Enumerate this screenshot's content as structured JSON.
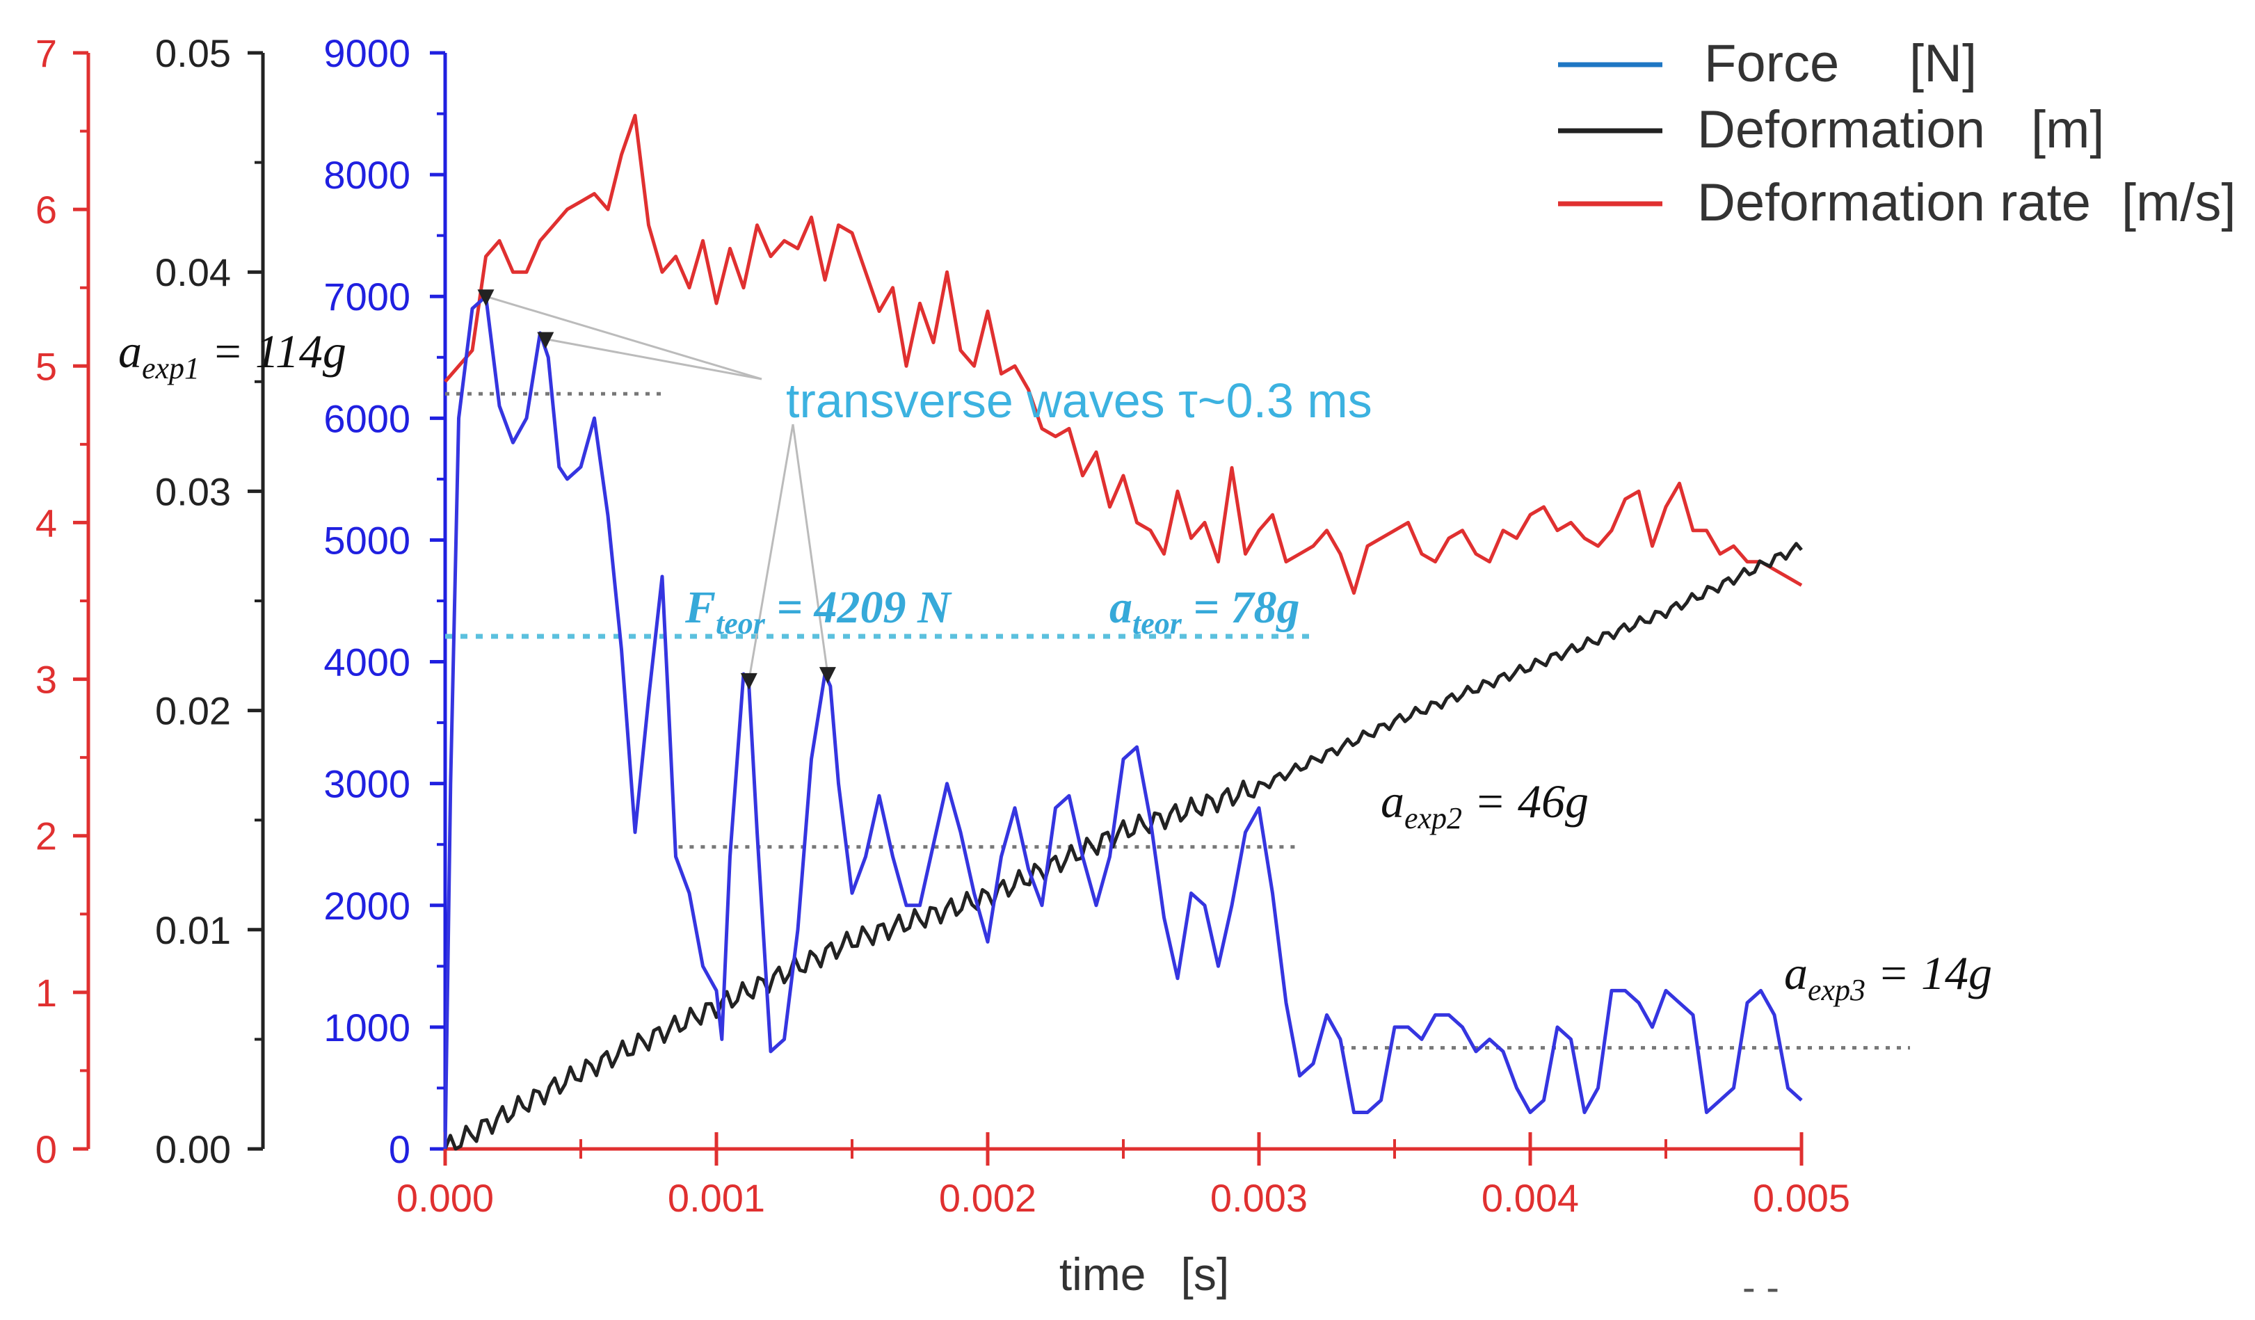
{
  "chart_data": {
    "type": "line",
    "xlabel": "time",
    "xunit": "[s]",
    "x_range": [
      0,
      0.005
    ],
    "x_ticks": [
      "0.000",
      "0.001",
      "0.002",
      "0.003",
      "0.004",
      "0.005"
    ],
    "axes": {
      "rate": {
        "color": "#e03030",
        "range": [
          0,
          7
        ],
        "ticks": [
          "0",
          "1",
          "2",
          "3",
          "4",
          "5",
          "6",
          "7"
        ]
      },
      "deformation": {
        "color": "#222222",
        "range": [
          0,
          0.05
        ],
        "ticks": [
          "0.00",
          "0.01",
          "0.02",
          "0.03",
          "0.04",
          "0.05"
        ]
      },
      "force": {
        "color": "#2020e0",
        "range": [
          0,
          9000
        ],
        "ticks": [
          "0",
          "1000",
          "2000",
          "3000",
          "4000",
          "5000",
          "6000",
          "7000",
          "8000",
          "9000"
        ]
      }
    },
    "legend": [
      {
        "label": "Force",
        "unit": "[N]",
        "color": "#1f77c4"
      },
      {
        "label": "Deformation",
        "unit": "[m]",
        "color": "#222222"
      },
      {
        "label": "Deformation rate",
        "unit": "[m/s]",
        "color": "#e03030"
      }
    ],
    "series": [
      {
        "name": "Force",
        "axis": "force",
        "color": "#3535e0",
        "x": [
          0,
          2e-05,
          5e-05,
          0.0001,
          0.00015,
          0.0002,
          0.00025,
          0.0003,
          0.00035,
          0.00038,
          0.00042,
          0.00045,
          0.0005,
          0.00055,
          0.0006,
          0.00065,
          0.0007,
          0.00075,
          0.0008,
          0.00082,
          0.00085,
          0.0009,
          0.00095,
          0.001,
          0.00102,
          0.00105,
          0.0011,
          0.00112,
          0.00115,
          0.0012,
          0.00125,
          0.0013,
          0.00135,
          0.0014,
          0.00142,
          0.00145,
          0.0015,
          0.00155,
          0.0016,
          0.00165,
          0.0017,
          0.00175,
          0.0018,
          0.00185,
          0.0019,
          0.00195,
          0.002,
          0.00205,
          0.0021,
          0.00215,
          0.0022,
          0.00225,
          0.0023,
          0.00235,
          0.0024,
          0.00245,
          0.0025,
          0.00255,
          0.0026,
          0.00265,
          0.0027,
          0.00275,
          0.0028,
          0.00285,
          0.0029,
          0.00295,
          0.003,
          0.00305,
          0.0031,
          0.00315,
          0.0032,
          0.00325,
          0.0033,
          0.00335,
          0.0034,
          0.00345,
          0.0035,
          0.00355,
          0.0036,
          0.00365,
          0.0037,
          0.00375,
          0.0038,
          0.00385,
          0.0039,
          0.00395,
          0.004,
          0.00405,
          0.0041,
          0.00415,
          0.0042,
          0.00425,
          0.0043,
          0.00435,
          0.0044,
          0.00445,
          0.0045,
          0.00455,
          0.0046,
          0.00465,
          0.0047,
          0.00475,
          0.0048,
          0.00485,
          0.0049,
          0.00495,
          0.005
        ],
        "y": [
          0,
          3000,
          6000,
          6900,
          7000,
          6100,
          5800,
          6000,
          6700,
          6500,
          5600,
          5500,
          5600,
          6000,
          5200,
          4100,
          2600,
          3700,
          4700,
          3800,
          2400,
          2100,
          1500,
          1300,
          900,
          2400,
          3900,
          3800,
          2600,
          800,
          900,
          1800,
          3200,
          3900,
          3800,
          3000,
          2100,
          2400,
          2900,
          2400,
          2000,
          2000,
          2500,
          3000,
          2600,
          2100,
          1700,
          2400,
          2800,
          2300,
          2000,
          2800,
          2900,
          2400,
          2000,
          2400,
          3200,
          3300,
          2700,
          1900,
          1400,
          2100,
          2000,
          1500,
          2000,
          2600,
          2800,
          2100,
          1200,
          600,
          700,
          1100,
          900,
          300,
          300,
          400,
          1000,
          1000,
          900,
          1100,
          1100,
          1000,
          800,
          900,
          800,
          500,
          300,
          400,
          1000,
          900,
          300,
          500,
          1300,
          1300,
          1200,
          1000,
          1300,
          1200,
          1100,
          300,
          400,
          500,
          1200,
          1300,
          1100,
          500,
          400
        ]
      },
      {
        "name": "Deformation",
        "axis": "deformation",
        "color": "#222222",
        "x": [
          0,
          0.0005,
          0.001,
          0.0015,
          0.002,
          0.0025,
          0.003,
          0.0035,
          0.004,
          0.0045,
          0.005
        ],
        "y": [
          0,
          0.0035,
          0.0065,
          0.0095,
          0.0115,
          0.0145,
          0.0165,
          0.0195,
          0.022,
          0.0245,
          0.0275
        ],
        "ripple": 0.0005
      },
      {
        "name": "Deformation rate",
        "axis": "rate",
        "color": "#e03030",
        "x": [
          0,
          0.0001,
          0.00015,
          0.0002,
          0.00025,
          0.0003,
          0.00035,
          0.0004,
          0.00045,
          0.0005,
          0.00055,
          0.0006,
          0.00065,
          0.0007,
          0.00075,
          0.0008,
          0.00085,
          0.0009,
          0.00095,
          0.001,
          0.00105,
          0.0011,
          0.00115,
          0.0012,
          0.00125,
          0.0013,
          0.00135,
          0.0014,
          0.00145,
          0.0015,
          0.00155,
          0.0016,
          0.00165,
          0.0017,
          0.00175,
          0.0018,
          0.00185,
          0.0019,
          0.00195,
          0.002,
          0.00205,
          0.0021,
          0.00215,
          0.0022,
          0.00225,
          0.0023,
          0.00235,
          0.0024,
          0.00245,
          0.0025,
          0.00255,
          0.0026,
          0.00265,
          0.0027,
          0.00275,
          0.0028,
          0.00285,
          0.0029,
          0.00295,
          0.003,
          0.00305,
          0.0031,
          0.00315,
          0.0032,
          0.00325,
          0.0033,
          0.00335,
          0.0034,
          0.00345,
          0.0035,
          0.00355,
          0.0036,
          0.00365,
          0.0037,
          0.00375,
          0.0038,
          0.00385,
          0.0039,
          0.00395,
          0.004,
          0.00405,
          0.0041,
          0.00415,
          0.0042,
          0.00425,
          0.0043,
          0.00435,
          0.0044,
          0.00445,
          0.0045,
          0.00455,
          0.0046,
          0.00465,
          0.0047,
          0.00475,
          0.0048,
          0.00485,
          0.0049,
          0.00495,
          0.005
        ],
        "y": [
          4.9,
          5.1,
          5.7,
          5.8,
          5.6,
          5.6,
          5.8,
          5.9,
          6.0,
          6.05,
          6.1,
          6.0,
          6.35,
          6.6,
          5.9,
          5.6,
          5.7,
          5.5,
          5.8,
          5.4,
          5.75,
          5.5,
          5.9,
          5.7,
          5.8,
          5.75,
          5.95,
          5.55,
          5.9,
          5.85,
          5.6,
          5.35,
          5.5,
          5.0,
          5.4,
          5.15,
          5.6,
          5.1,
          5.0,
          5.35,
          4.95,
          5.0,
          4.85,
          4.6,
          4.55,
          4.6,
          4.3,
          4.45,
          4.1,
          4.3,
          4.0,
          3.95,
          3.8,
          4.2,
          3.9,
          4.0,
          3.75,
          4.35,
          3.8,
          3.95,
          4.05,
          3.75,
          3.8,
          3.85,
          3.95,
          3.8,
          3.55,
          3.85,
          3.9,
          3.95,
          4.0,
          3.8,
          3.75,
          3.9,
          3.95,
          3.8,
          3.75,
          3.95,
          3.9,
          4.05,
          4.1,
          3.95,
          4.0,
          3.9,
          3.85,
          3.95,
          4.15,
          4.2,
          3.85,
          4.1,
          4.25,
          3.95,
          3.95,
          3.8,
          3.85,
          3.75,
          3.75,
          3.7,
          3.65,
          3.6
        ]
      }
    ],
    "reference_lines": [
      {
        "name": "F_teor",
        "axis": "force",
        "value": 4209,
        "x_range": [
          0,
          0.0032
        ],
        "color": "#5bc0de"
      },
      {
        "name": "a_exp1",
        "axis": "force",
        "value": 6200,
        "x_range": [
          0,
          0.00082
        ],
        "color": "#777777"
      },
      {
        "name": "a_exp2",
        "axis": "force",
        "value": 2480,
        "x_range": [
          0.00086,
          0.00315
        ],
        "color": "#777777"
      },
      {
        "name": "a_exp3",
        "axis": "force",
        "value": 830,
        "x_range": [
          0.0033,
          0.0054
        ],
        "color": "#777777"
      }
    ],
    "annotations": {
      "transverse_waves": "transverse waves  τ~0.3 ms",
      "a_exp1": {
        "base": "a",
        "sub": "exp1",
        "rest": " = 114g"
      },
      "a_exp2": {
        "base": "a",
        "sub": "exp2",
        "rest": " = 46g"
      },
      "a_exp3": {
        "base": "a",
        "sub": "exp3",
        "rest": " = 14g"
      },
      "F_teor": {
        "base": "F",
        "sub": "teor",
        "rest": " = 4209 N"
      },
      "a_teor": {
        "base": "a",
        "sub": "teor",
        "rest": " = 78g"
      },
      "arrow_targets": [
        {
          "x": 0.00015,
          "y": 7000
        },
        {
          "x": 0.00037,
          "y": 6650
        },
        {
          "x": 0.00112,
          "y": 3850
        },
        {
          "x": 0.00141,
          "y": 3900
        }
      ]
    }
  }
}
